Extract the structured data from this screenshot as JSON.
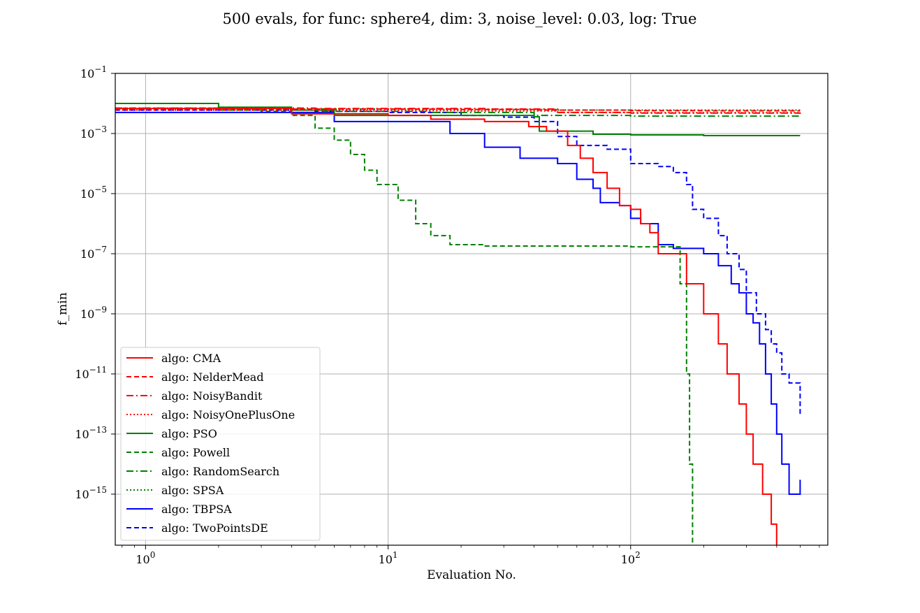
{
  "chart_data": {
    "type": "line",
    "title": "500 evals, for func: sphere4, dim: 3, noise_level: 0.03, log: True",
    "xlabel": "Evaluation No.",
    "ylabel": "f_min",
    "xscale": "log",
    "yscale": "log",
    "xlim": [
      0.75,
      650
    ],
    "ylim": [
      2e-17,
      0.1
    ],
    "grid": true,
    "legend_position": "lower-left",
    "x_ticks": [
      {
        "value": 1,
        "base": "10",
        "exp": "0"
      },
      {
        "value": 10,
        "base": "10",
        "exp": "1"
      },
      {
        "value": 100,
        "base": "10",
        "exp": "2"
      }
    ],
    "y_ticks": [
      {
        "value": 0.1,
        "base": "10",
        "exp": "−1"
      },
      {
        "value": 0.001,
        "base": "10",
        "exp": "−3"
      },
      {
        "value": 1e-05,
        "base": "10",
        "exp": "−5"
      },
      {
        "value": 1e-07,
        "base": "10",
        "exp": "−7"
      },
      {
        "value": 1e-09,
        "base": "10",
        "exp": "−9"
      },
      {
        "value": 1e-11,
        "base": "10",
        "exp": "−11"
      },
      {
        "value": 1e-13,
        "base": "10",
        "exp": "−13"
      },
      {
        "value": 1e-15,
        "base": "10",
        "exp": "−15"
      }
    ],
    "series": [
      {
        "name": "algo: CMA",
        "color": "#ff0000",
        "dash": "solid",
        "points": [
          [
            0.75,
            0.0068
          ],
          [
            4,
            0.0045
          ],
          [
            10,
            0.004
          ],
          [
            15,
            0.003
          ],
          [
            25,
            0.0025
          ],
          [
            38,
            0.0017
          ],
          [
            45,
            0.0012
          ],
          [
            55,
            0.0004
          ],
          [
            62,
            0.00015
          ],
          [
            70,
            5e-05
          ],
          [
            80,
            1.5e-05
          ],
          [
            90,
            4e-06
          ],
          [
            100,
            3e-06
          ],
          [
            110,
            1e-06
          ],
          [
            120,
            5e-07
          ],
          [
            130,
            1e-07
          ],
          [
            150,
            1e-07
          ],
          [
            170,
            1e-08
          ],
          [
            200,
            1e-09
          ],
          [
            230,
            1e-10
          ],
          [
            250,
            1e-11
          ],
          [
            280,
            1e-12
          ],
          [
            300,
            1e-13
          ],
          [
            320,
            1e-14
          ],
          [
            350,
            1e-15
          ],
          [
            380,
            1e-16
          ],
          [
            400,
            2e-17
          ]
        ]
      },
      {
        "name": "algo: NelderMead",
        "color": "#ff0000",
        "dash": "dashed",
        "points": [
          [
            0.75,
            0.0065
          ],
          [
            3,
            0.0065
          ],
          [
            10,
            0.0065
          ],
          [
            20,
            0.0063
          ],
          [
            40,
            0.006
          ],
          [
            100,
            0.0058
          ],
          [
            200,
            0.0057
          ],
          [
            500,
            0.0057
          ]
        ]
      },
      {
        "name": "algo: NoisyBandit",
        "color": "#ff0000",
        "dash": "dashdot",
        "points": [
          [
            0.75,
            0.007
          ],
          [
            5,
            0.0068
          ],
          [
            12,
            0.0068
          ],
          [
            25,
            0.0065
          ],
          [
            50,
            0.005
          ],
          [
            100,
            0.0048
          ],
          [
            500,
            0.0045
          ]
        ]
      },
      {
        "name": "algo: NoisyOnePlusOne",
        "color": "#ff0000",
        "dash": "dotted",
        "points": [
          [
            0.75,
            0.006
          ],
          [
            8,
            0.0058
          ],
          [
            20,
            0.0056
          ],
          [
            50,
            0.005
          ],
          [
            100,
            0.0049
          ],
          [
            500,
            0.0048
          ]
        ]
      },
      {
        "name": "algo: PSO",
        "color": "#008000",
        "dash": "solid",
        "points": [
          [
            0.75,
            0.01
          ],
          [
            1.2,
            0.01
          ],
          [
            2,
            0.0075
          ],
          [
            4,
            0.006
          ],
          [
            6,
            0.004
          ],
          [
            20,
            0.004
          ],
          [
            40,
            0.0036
          ],
          [
            42,
            0.0012
          ],
          [
            70,
            0.00095
          ],
          [
            100,
            0.0009
          ],
          [
            200,
            0.00085
          ],
          [
            500,
            0.00085
          ]
        ]
      },
      {
        "name": "algo: Powell",
        "color": "#008000",
        "dash": "dashed",
        "points": [
          [
            0.75,
            0.007
          ],
          [
            2,
            0.006
          ],
          [
            3,
            0.0055
          ],
          [
            4,
            0.004
          ],
          [
            5,
            0.0015
          ],
          [
            6,
            0.0006
          ],
          [
            7,
            0.0002
          ],
          [
            8,
            6e-05
          ],
          [
            9,
            2e-05
          ],
          [
            11,
            6e-06
          ],
          [
            13,
            1e-06
          ],
          [
            15,
            4e-07
          ],
          [
            18,
            2e-07
          ],
          [
            25,
            1.8e-07
          ],
          [
            100,
            1.7e-07
          ],
          [
            150,
            1.7e-07
          ],
          [
            160,
            1e-08
          ],
          [
            170,
            1e-11
          ],
          [
            175,
            1e-14
          ],
          [
            180,
            1e-16
          ],
          [
            180,
            2e-17
          ]
        ]
      },
      {
        "name": "algo: RandomSearch",
        "color": "#008000",
        "dash": "dashdot",
        "points": [
          [
            0.75,
            0.007
          ],
          [
            5,
            0.0055
          ],
          [
            15,
            0.005
          ],
          [
            40,
            0.004
          ],
          [
            100,
            0.0038
          ],
          [
            500,
            0.0036
          ]
        ]
      },
      {
        "name": "algo: SPSA",
        "color": "#008000",
        "dash": "dotted",
        "points": [
          [
            0.75,
            0.0065
          ],
          [
            10,
            0.0063
          ],
          [
            50,
            0.006
          ],
          [
            500,
            0.006
          ]
        ]
      },
      {
        "name": "algo: TBPSA",
        "color": "#0000ff",
        "dash": "solid",
        "points": [
          [
            0.75,
            0.005
          ],
          [
            5,
            0.005
          ],
          [
            6,
            0.0025
          ],
          [
            12,
            0.0025
          ],
          [
            18,
            0.001
          ],
          [
            25,
            0.00035
          ],
          [
            35,
            0.00015
          ],
          [
            50,
            0.0001
          ],
          [
            60,
            3e-05
          ],
          [
            70,
            1.5e-05
          ],
          [
            75,
            5e-06
          ],
          [
            90,
            4e-06
          ],
          [
            100,
            1.5e-06
          ],
          [
            110,
            1e-06
          ],
          [
            130,
            2e-07
          ],
          [
            150,
            1.5e-07
          ],
          [
            200,
            1e-07
          ],
          [
            230,
            4e-08
          ],
          [
            260,
            1e-08
          ],
          [
            280,
            5e-09
          ],
          [
            300,
            1e-09
          ],
          [
            320,
            5e-10
          ],
          [
            340,
            1e-10
          ],
          [
            360,
            1e-11
          ],
          [
            380,
            1e-12
          ],
          [
            400,
            1e-13
          ],
          [
            420,
            1e-14
          ],
          [
            450,
            1e-15
          ],
          [
            500,
            3e-15
          ]
        ]
      },
      {
        "name": "algo: TwoPointsDE",
        "color": "#0000ff",
        "dash": "dashed",
        "points": [
          [
            0.75,
            0.006
          ],
          [
            5,
            0.0055
          ],
          [
            10,
            0.005
          ],
          [
            20,
            0.004
          ],
          [
            30,
            0.0035
          ],
          [
            40,
            0.0025
          ],
          [
            50,
            0.0008
          ],
          [
            60,
            0.0004
          ],
          [
            80,
            0.0003
          ],
          [
            100,
            0.0001
          ],
          [
            130,
            8e-05
          ],
          [
            150,
            5e-05
          ],
          [
            170,
            2e-05
          ],
          [
            180,
            3e-06
          ],
          [
            200,
            1.5e-06
          ],
          [
            230,
            4e-07
          ],
          [
            250,
            1e-07
          ],
          [
            280,
            3e-08
          ],
          [
            300,
            5e-09
          ],
          [
            330,
            1e-09
          ],
          [
            360,
            3e-10
          ],
          [
            380,
            1e-10
          ],
          [
            400,
            5e-11
          ],
          [
            420,
            1e-11
          ],
          [
            450,
            5e-12
          ],
          [
            500,
            4e-13
          ]
        ]
      }
    ]
  }
}
